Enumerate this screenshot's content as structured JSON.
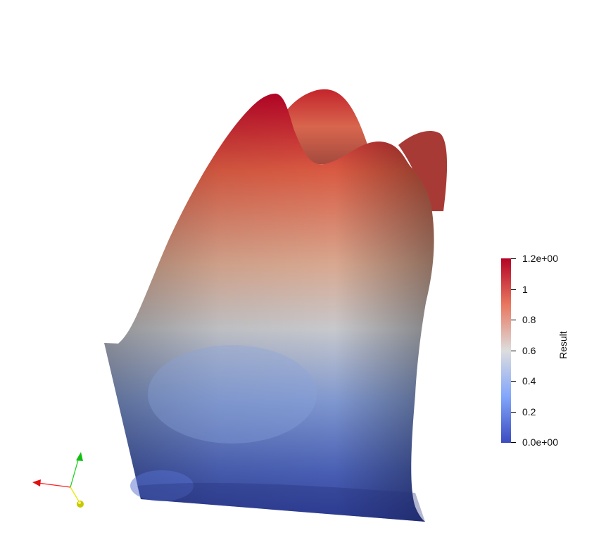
{
  "colors": {
    "background": "#ffffff",
    "colormap_low": "#3b4cc0",
    "colormap_mid": "#dddddd",
    "colormap_high": "#b40426",
    "axis_x": "#ff2020",
    "axis_y": "#20d020",
    "axis_z": "#e8e800"
  },
  "colorbar": {
    "title": "Result",
    "range": [
      0.0,
      1.2
    ],
    "ticks": [
      {
        "value": 1.2,
        "label": "1.2e+00"
      },
      {
        "value": 1.0,
        "label": "1"
      },
      {
        "value": 0.8,
        "label": "0.8"
      },
      {
        "value": 0.6,
        "label": "0.6"
      },
      {
        "value": 0.4,
        "label": "0.4"
      },
      {
        "value": 0.2,
        "label": "0.2"
      },
      {
        "value": 0.0,
        "label": "0.0e+00"
      }
    ]
  },
  "icons": {
    "orientation_axes": "xyz-orientation-axes-icon"
  }
}
